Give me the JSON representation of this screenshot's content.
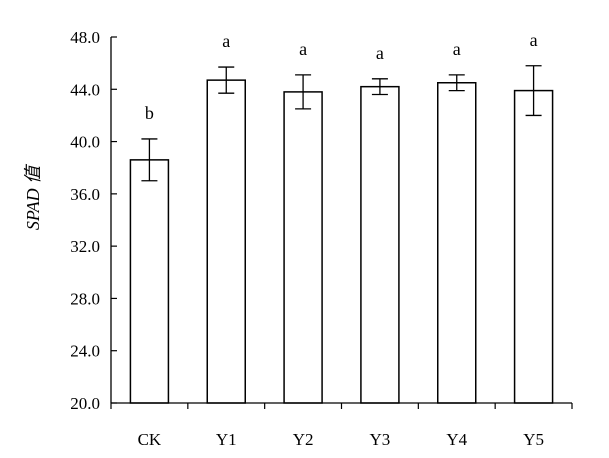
{
  "chart_data": {
    "type": "bar",
    "categories": [
      "CK",
      "Y1",
      "Y2",
      "Y3",
      "Y4",
      "Y5"
    ],
    "series": [
      {
        "values": [
          38.6,
          44.7,
          43.8,
          44.2,
          44.5,
          43.9
        ],
        "errors": [
          1.6,
          1.0,
          1.3,
          0.6,
          0.6,
          1.9
        ],
        "significance": [
          "b",
          "a",
          "a",
          "a",
          "a",
          "a"
        ]
      }
    ],
    "xlabel": "",
    "ylabel": "SPAD 值",
    "ylim": [
      20.0,
      48.0
    ],
    "yticks": [
      "20.0",
      "24.0",
      "28.0",
      "32.0",
      "36.0",
      "40.0",
      "44.0",
      "48.0"
    ],
    "grid": false,
    "bar_fill": "#ffffff",
    "bar_stroke": "#000000"
  }
}
